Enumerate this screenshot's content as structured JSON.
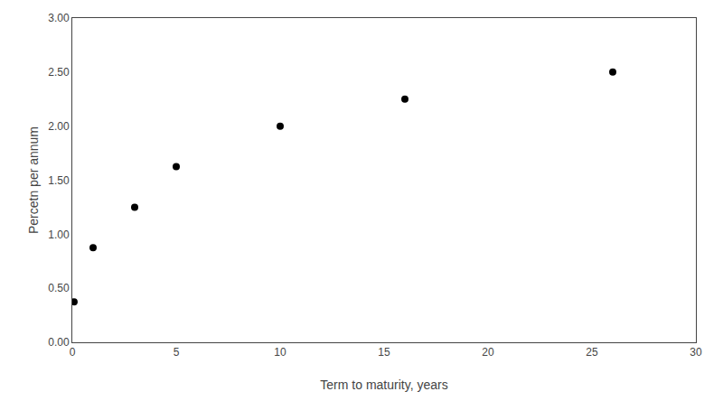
{
  "chart_data": {
    "type": "scatter",
    "x": [
      0.083,
      1,
      3,
      5,
      10,
      16,
      26
    ],
    "values": [
      0.375,
      0.875,
      1.25,
      1.625,
      2.0,
      2.25,
      2.5
    ],
    "xlabel": "Term to maturity, years",
    "ylabel": "Percetn per annum",
    "xlim": [
      0,
      30
    ],
    "ylim": [
      0.0,
      3.0
    ],
    "xticks": [
      0,
      5,
      10,
      15,
      20,
      25,
      30
    ],
    "yticks": [
      {
        "value": 0.0,
        "label": "0.00"
      },
      {
        "value": 0.5,
        "label": "0.50"
      },
      {
        "value": 1.0,
        "label": "1.00"
      },
      {
        "value": 1.5,
        "label": "1.50"
      },
      {
        "value": 2.0,
        "label": "2.00"
      },
      {
        "value": 2.5,
        "label": "2.50"
      },
      {
        "value": 3.0,
        "label": "3.00"
      }
    ],
    "color": "black",
    "grid": false
  }
}
